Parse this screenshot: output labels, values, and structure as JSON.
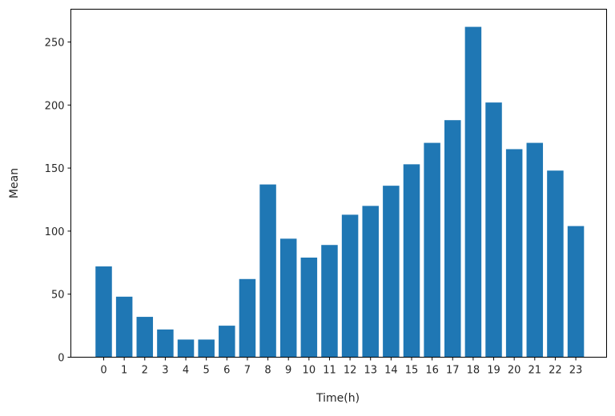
{
  "chart_data": {
    "type": "bar",
    "title": "",
    "xlabel": "Time(h)",
    "ylabel": "Mean",
    "categories": [
      "0",
      "1",
      "2",
      "3",
      "4",
      "5",
      "6",
      "7",
      "8",
      "9",
      "10",
      "11",
      "12",
      "13",
      "14",
      "15",
      "16",
      "17",
      "18",
      "19",
      "20",
      "21",
      "22",
      "23"
    ],
    "values": [
      72,
      48,
      32,
      22,
      14,
      14,
      25,
      62,
      137,
      94,
      79,
      89,
      113,
      120,
      136,
      153,
      170,
      188,
      262,
      202,
      165,
      170,
      148,
      104
    ],
    "ylim": [
      0,
      276
    ],
    "xlim": [
      -1.6,
      24.5
    ],
    "yticks": [
      0,
      50,
      100,
      150,
      200,
      250
    ],
    "bar_color": "#1f77b4",
    "grid": false,
    "legend": "none"
  }
}
